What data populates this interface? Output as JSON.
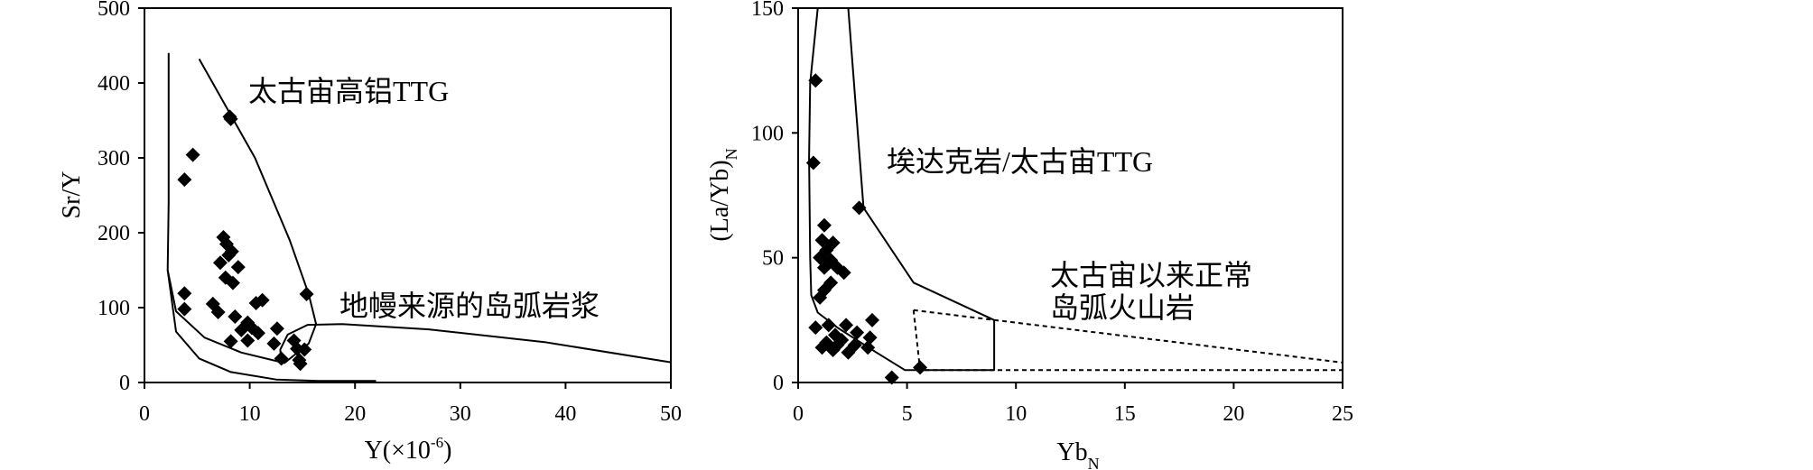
{
  "chart_data": [
    {
      "type": "scatter",
      "xlabel": "Y(×10",
      "xlabel_sup": "-6",
      "xlabel_end": ")",
      "ylabel": "Sr/Y",
      "xlim": [
        0,
        50
      ],
      "ylim": [
        0,
        500
      ],
      "xticks": [
        "0",
        "10",
        "20",
        "30",
        "40",
        "50"
      ],
      "yticks": [
        "0",
        "100",
        "200",
        "300",
        "400",
        "500"
      ],
      "annotations": [
        "太古宙高铝TTG",
        "地幔来源的岛弧岩浆"
      ],
      "points": [
        {
          "x": 8.1,
          "y": 355
        },
        {
          "x": 8.2,
          "y": 352
        },
        {
          "x": 4.6,
          "y": 304
        },
        {
          "x": 3.8,
          "y": 271
        },
        {
          "x": 7.5,
          "y": 194
        },
        {
          "x": 7.8,
          "y": 185
        },
        {
          "x": 8.3,
          "y": 175
        },
        {
          "x": 8.0,
          "y": 170
        },
        {
          "x": 7.2,
          "y": 160
        },
        {
          "x": 8.9,
          "y": 154
        },
        {
          "x": 7.7,
          "y": 140
        },
        {
          "x": 8.4,
          "y": 133
        },
        {
          "x": 3.8,
          "y": 119
        },
        {
          "x": 6.5,
          "y": 105
        },
        {
          "x": 3.8,
          "y": 98
        },
        {
          "x": 7.0,
          "y": 94
        },
        {
          "x": 8.6,
          "y": 88
        },
        {
          "x": 10.6,
          "y": 106
        },
        {
          "x": 11.2,
          "y": 110
        },
        {
          "x": 9.8,
          "y": 80
        },
        {
          "x": 10.2,
          "y": 73
        },
        {
          "x": 9.2,
          "y": 70
        },
        {
          "x": 10.8,
          "y": 66
        },
        {
          "x": 8.2,
          "y": 55
        },
        {
          "x": 9.8,
          "y": 56
        },
        {
          "x": 12.6,
          "y": 72
        },
        {
          "x": 12.3,
          "y": 52
        },
        {
          "x": 13.0,
          "y": 32
        },
        {
          "x": 14.2,
          "y": 56
        },
        {
          "x": 14.5,
          "y": 45
        },
        {
          "x": 15.2,
          "y": 44
        },
        {
          "x": 14.7,
          "y": 30
        },
        {
          "x": 14.8,
          "y": 25
        },
        {
          "x": 15.4,
          "y": 118
        }
      ],
      "curves": [
        {
          "name": "high-al-ttg-field",
          "style": "solid",
          "points": [
            [
              5.2,
              432
            ],
            [
              10.5,
              300
            ],
            [
              13.8,
              190
            ],
            [
              15.6,
              118
            ],
            [
              16.3,
              78
            ],
            [
              15.6,
              52
            ],
            [
              13.3,
              26
            ],
            [
              9.2,
              40
            ],
            [
              5.7,
              60
            ],
            [
              3.0,
              95
            ],
            [
              2.2,
              150
            ],
            [
              2.3,
              240
            ],
            [
              2.3,
              440
            ]
          ]
        },
        {
          "name": "arc-magma-field",
          "style": "solid",
          "points": [
            [
              2.2,
              150
            ],
            [
              3.0,
              68
            ],
            [
              5.2,
              32
            ],
            [
              8.2,
              14
            ],
            [
              12.5,
              4
            ],
            [
              16.5,
              2
            ],
            [
              22,
              2
            ]
          ]
        },
        {
          "name": "arc-magma-field-upper",
          "style": "solid",
          "points": [
            [
              13.0,
              26
            ],
            [
              12.9,
              44
            ],
            [
              13.6,
              64
            ],
            [
              15.5,
              77
            ],
            [
              18.8,
              78
            ],
            [
              27,
              71
            ],
            [
              38,
              54
            ],
            [
              50,
              27
            ]
          ]
        }
      ]
    },
    {
      "type": "scatter",
      "xlabel": "Yb",
      "xlabel_sub": "N",
      "ylabel": "(La/Yb)",
      "ylabel_sub": "N",
      "xlim": [
        0,
        25
      ],
      "ylim": [
        0,
        150
      ],
      "xticks": [
        "0",
        "5",
        "10",
        "15",
        "20",
        "25"
      ],
      "yticks": [
        "0",
        "50",
        "100",
        "150"
      ],
      "annotations": [
        "埃达克岩/太古宙TTG",
        "太古宙以来正常",
        "岛弧火山岩"
      ],
      "points": [
        {
          "x": 0.8,
          "y": 121
        },
        {
          "x": 0.7,
          "y": 88
        },
        {
          "x": 2.8,
          "y": 70
        },
        {
          "x": 1.2,
          "y": 63
        },
        {
          "x": 1.6,
          "y": 56
        },
        {
          "x": 1.1,
          "y": 57
        },
        {
          "x": 1.3,
          "y": 53
        },
        {
          "x": 1.0,
          "y": 50
        },
        {
          "x": 1.5,
          "y": 49
        },
        {
          "x": 1.2,
          "y": 46
        },
        {
          "x": 1.8,
          "y": 46
        },
        {
          "x": 2.1,
          "y": 44
        },
        {
          "x": 1.5,
          "y": 40
        },
        {
          "x": 1.2,
          "y": 37
        },
        {
          "x": 1.0,
          "y": 34
        },
        {
          "x": 1.4,
          "y": 23
        },
        {
          "x": 0.8,
          "y": 22
        },
        {
          "x": 2.2,
          "y": 23
        },
        {
          "x": 2.7,
          "y": 20
        },
        {
          "x": 1.7,
          "y": 19
        },
        {
          "x": 2.0,
          "y": 17
        },
        {
          "x": 1.3,
          "y": 16
        },
        {
          "x": 1.8,
          "y": 15
        },
        {
          "x": 3.4,
          "y": 25
        },
        {
          "x": 3.3,
          "y": 18
        },
        {
          "x": 3.2,
          "y": 14
        },
        {
          "x": 1.1,
          "y": 14
        },
        {
          "x": 1.6,
          "y": 13
        },
        {
          "x": 2.3,
          "y": 12
        },
        {
          "x": 2.6,
          "y": 15
        },
        {
          "x": 4.3,
          "y": 2
        },
        {
          "x": 5.6,
          "y": 6
        }
      ],
      "curves": [
        {
          "name": "adakite-ttg-field",
          "style": "solid",
          "points": [
            [
              0.9,
              150
            ],
            [
              0.55,
              120
            ],
            [
              0.5,
              90
            ],
            [
              0.55,
              50
            ],
            [
              0.6,
              35
            ],
            [
              0.9,
              28
            ],
            [
              1.8,
              22
            ],
            [
              3.6,
              12
            ],
            [
              4.9,
              5
            ],
            [
              9.0,
              5
            ],
            [
              9.0,
              25
            ],
            [
              5.3,
              40
            ],
            [
              3.0,
              70
            ],
            [
              2.3,
              150
            ]
          ]
        },
        {
          "name": "normal-arc-field",
          "style": "dashed",
          "points": [
            [
              5.3,
              29
            ],
            [
              25,
              8
            ],
            [
              25,
              5
            ],
            [
              5.6,
              5
            ],
            [
              5.3,
              29
            ]
          ]
        }
      ]
    }
  ]
}
